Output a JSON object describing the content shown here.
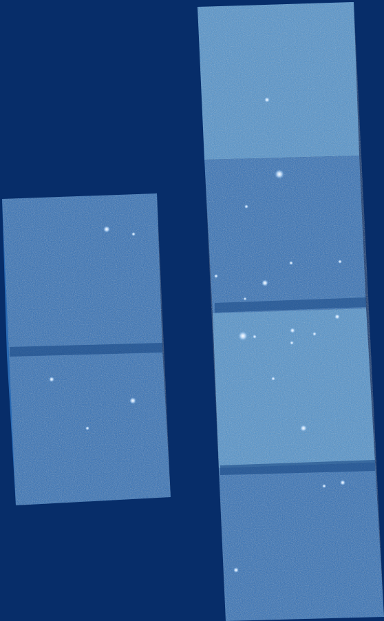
{
  "colors": {
    "background": "#072d69",
    "strip_dark": "#1d5aa3",
    "strip_mid": "#2a6bb5",
    "strip_bright": "#4a8fcc",
    "noise_light": "#7fb4e6",
    "noise_dark": "#123f80",
    "gap_band": "#12427f",
    "star": "#e8f3ff",
    "star_glow": "#9fd0ff"
  },
  "scene": {
    "description_type": "astronomical detector mosaic",
    "left_panel": {
      "segments": [
        {
          "brightness": "medium"
        },
        {
          "brightness": "medium"
        }
      ]
    },
    "right_panel": {
      "segments": [
        {
          "brightness": "bright"
        },
        {
          "brightness": "medium"
        },
        {
          "brightness": "bright"
        },
        {
          "brightness": "medium"
        }
      ]
    }
  }
}
